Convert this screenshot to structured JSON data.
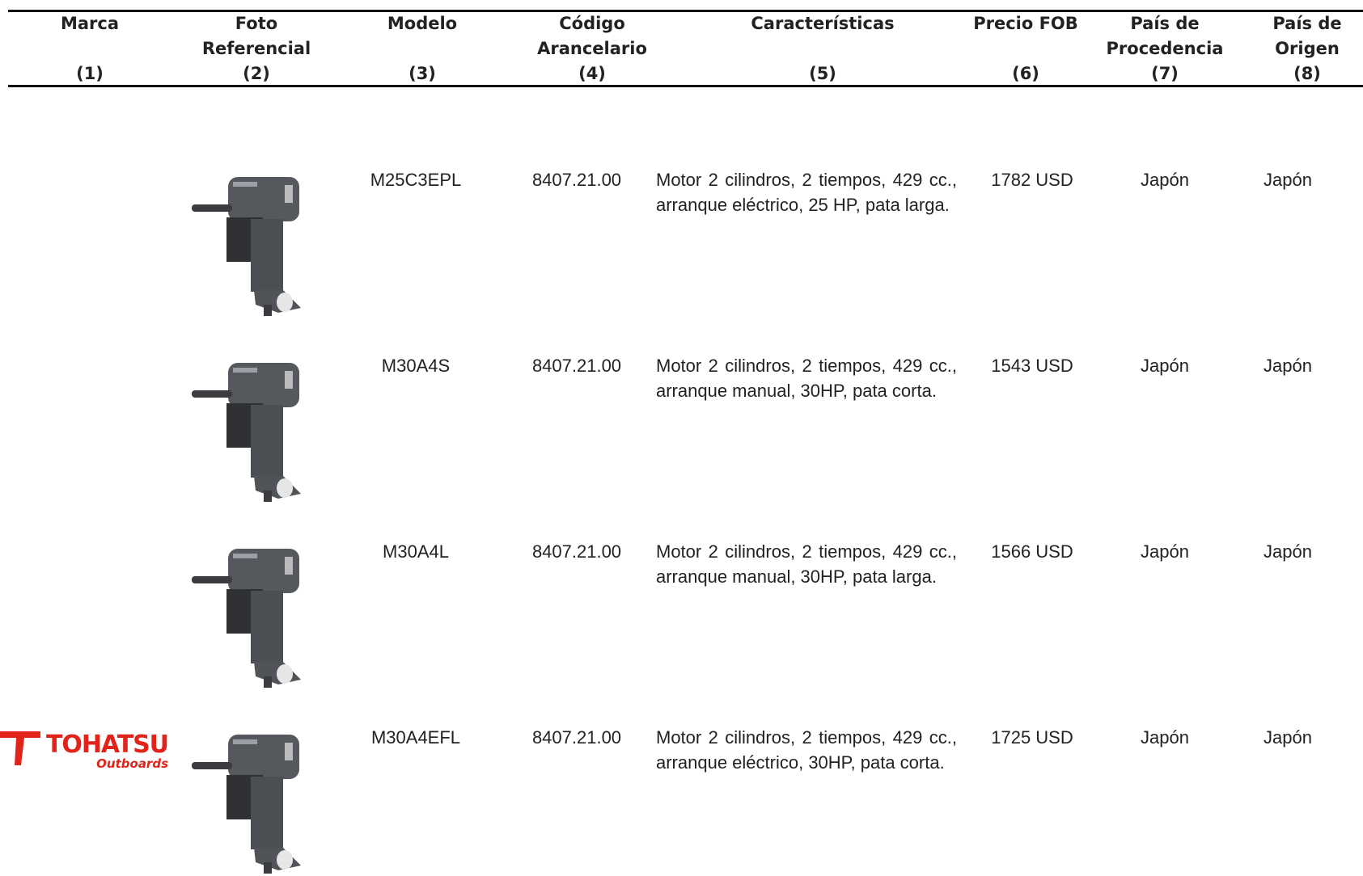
{
  "header": {
    "columns": [
      {
        "title": [
          "Marca"
        ],
        "number": "(1)"
      },
      {
        "title": [
          "Foto",
          "Referencial"
        ],
        "number": "(2)"
      },
      {
        "title": [
          "Modelo"
        ],
        "number": "(3)"
      },
      {
        "title": [
          "Código",
          "Arancelario"
        ],
        "number": "(4)"
      },
      {
        "title": [
          "Características"
        ],
        "number": "(5)"
      },
      {
        "title": [
          "Precio FOB"
        ],
        "number": "(6)"
      },
      {
        "title": [
          "País de",
          "Procedencia"
        ],
        "number": "(7)"
      },
      {
        "title": [
          "País de",
          "Origen"
        ],
        "number": "(8)"
      }
    ]
  },
  "table": {
    "rows": [
      {
        "model": "M25C3EPL",
        "code": "8407.21.00",
        "features": "Motor 2 cilindros, 2 tiempos, 429 cc., arranque eléctrico, 25 HP, pata larga.",
        "price": "1782 USD",
        "procedencia": "Japón",
        "origen": "Japón"
      },
      {
        "model": "M30A4S",
        "code": "8407.21.00",
        "features": "Motor 2 cilindros, 2 tiempos, 429 cc., arranque manual, 30HP, pata corta.",
        "price": "1543 USD",
        "procedencia": "Japón",
        "origen": "Japón"
      },
      {
        "model": "M30A4L",
        "code": "8407.21.00",
        "features": "Motor 2 cilindros, 2 tiempos, 429 cc., arranque manual, 30HP, pata larga.",
        "price": "1566 USD",
        "procedencia": "Japón",
        "origen": "Japón"
      },
      {
        "brand": {
          "name": "TOHATSU",
          "tagline": "Outboards"
        },
        "model": "M30A4EFL",
        "code": "8407.21.00",
        "features": "Motor 2 cilindros, 2 tiempos, 429 cc., arranque eléctrico, 30HP, pata corta.",
        "price": "1725 USD",
        "procedencia": "Japón",
        "origen": "Japón"
      }
    ]
  }
}
